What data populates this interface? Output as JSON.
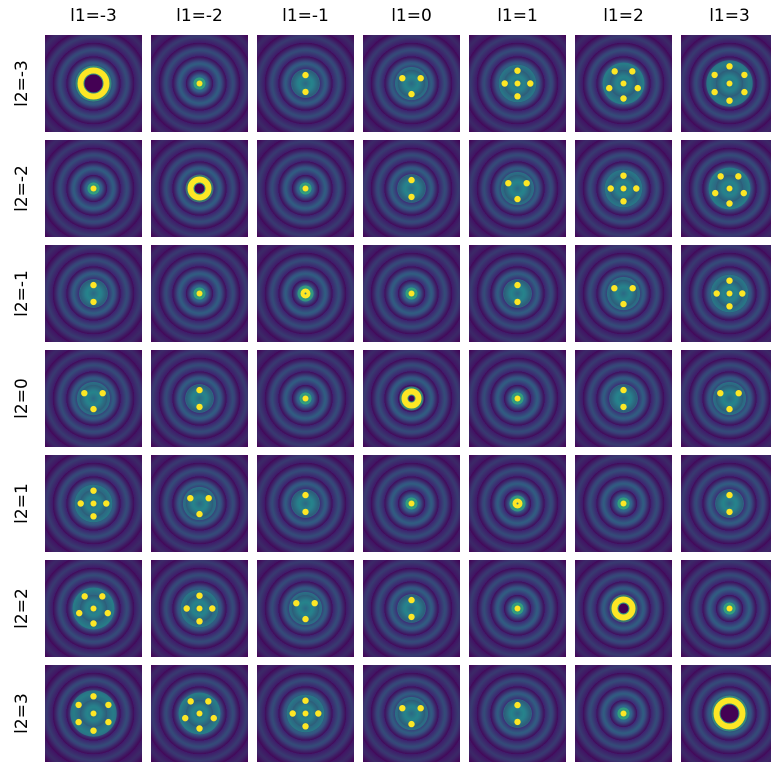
{
  "column_labels": [
    "l1=-3",
    "l1=-2",
    "l1=-1",
    "l1=0",
    "l1=1",
    "l1=2",
    "l1=3"
  ],
  "row_labels": [
    "l2=-3",
    "l2=-2",
    "l2=-1",
    "l2=0",
    "l2=1",
    "l2=2",
    "l2=3"
  ]
}
